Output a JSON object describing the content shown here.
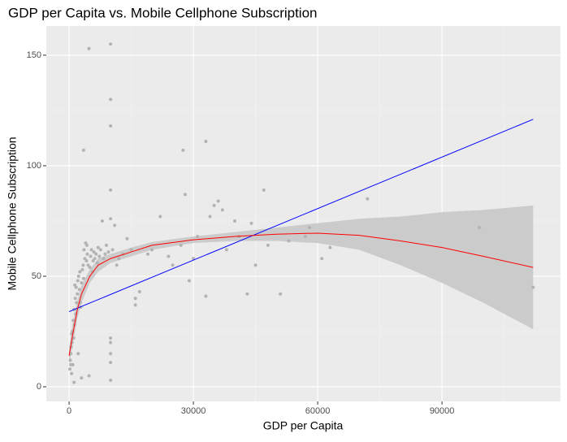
{
  "chart_data": {
    "type": "scatter",
    "title": "GDP per Capita vs. Mobile Cellphone Subscription",
    "x_label": "GDP per Capita",
    "y_label": "Mobile Cellphone Subscription",
    "xlim": [
      -5500,
      118600
    ],
    "ylim": [
      -6.6,
      163.2
    ],
    "xticks": [
      0,
      30000,
      60000,
      90000
    ],
    "yticks": [
      0,
      50,
      100,
      150
    ],
    "x_minor_ticks": [
      15000,
      45000,
      75000,
      105000
    ],
    "y_minor_ticks": [
      25,
      75,
      125
    ],
    "grid": true,
    "point_color": "#b3b3b3",
    "x": [
      200,
      300,
      400,
      500,
      600,
      700,
      800,
      900,
      1000,
      1100,
      1200,
      1300,
      1500,
      1600,
      1700,
      1800,
      2000,
      2100,
      2300,
      2500,
      2600,
      2800,
      3000,
      3200,
      3400,
      3500,
      3600,
      3800,
      4000,
      4200,
      4400,
      4600,
      4800,
      5000,
      5200,
      5400,
      5600,
      5800,
      6000,
      6200,
      6500,
      6800,
      7000,
      7300,
      7600,
      8000,
      8300,
      8700,
      9000,
      9500,
      10000,
      10000,
      10000,
      10000,
      10000,
      10000,
      10000,
      10000,
      10000,
      10000,
      10500,
      11000,
      11500,
      12000,
      13000,
      14000,
      15000,
      16000,
      16000,
      17000,
      19000,
      20000,
      22000,
      24000,
      25000,
      27000,
      27500,
      28000,
      29000,
      30000,
      31000,
      33000,
      33000,
      34000,
      35000,
      36000,
      37000,
      38000,
      40000,
      41000,
      43000,
      44000,
      45000,
      47000,
      48000,
      51000,
      53000,
      57000,
      58000,
      61000,
      63000,
      72000,
      99000,
      112000,
      3500,
      4800,
      1200,
      2200,
      3000,
      600,
      400,
      1400,
      2700,
      4300
    ],
    "y": [
      8,
      12,
      15,
      18,
      6,
      20,
      25,
      10,
      30,
      22,
      35,
      28,
      40,
      33,
      45,
      38,
      42,
      48,
      50,
      44,
      52,
      36,
      47,
      53,
      55,
      49,
      62,
      58,
      65,
      57,
      60,
      55,
      153,
      54,
      59,
      62,
      52,
      57,
      61,
      58,
      60,
      56,
      63,
      59,
      62,
      75,
      58,
      60,
      64,
      61,
      155,
      130,
      118,
      89,
      76,
      22,
      20,
      15,
      11,
      3,
      62,
      73,
      55,
      58,
      60,
      67,
      62,
      37,
      40,
      43,
      60,
      62,
      77,
      59,
      55,
      64,
      107,
      87,
      48,
      58,
      68,
      111,
      41,
      77,
      82,
      84,
      80,
      62,
      75,
      68,
      42,
      74,
      55,
      89,
      64,
      42,
      66,
      68,
      72,
      58,
      63,
      85,
      72,
      45,
      107,
      5,
      2,
      15,
      4,
      24,
      10,
      46,
      38,
      64
    ]
  },
  "linear_fit": {
    "color": "#0000ff",
    "x": [
      0,
      112000
    ],
    "y": [
      34,
      121
    ]
  },
  "smooth_fit": {
    "color": "#ff0000",
    "band_color": "#c8c8c8",
    "x": [
      0,
      1000,
      2000,
      3000,
      5000,
      7000,
      10000,
      15000,
      20000,
      30000,
      40000,
      50000,
      60000,
      70000,
      80000,
      90000,
      100000,
      112000
    ],
    "y": [
      14,
      25,
      35,
      42,
      50,
      55,
      58,
      61,
      64,
      66.5,
      68,
      69,
      69.5,
      68.5,
      66,
      63,
      59,
      54
    ],
    "lower": [
      10,
      20,
      31,
      38,
      47,
      52,
      56,
      59,
      62,
      65,
      66,
      66,
      65,
      62,
      55,
      47,
      38,
      26
    ],
    "upper": [
      18,
      30,
      39,
      46,
      53,
      58,
      60,
      63,
      65.5,
      68,
      70,
      72,
      74,
      76,
      77,
      79,
      80,
      82
    ]
  }
}
